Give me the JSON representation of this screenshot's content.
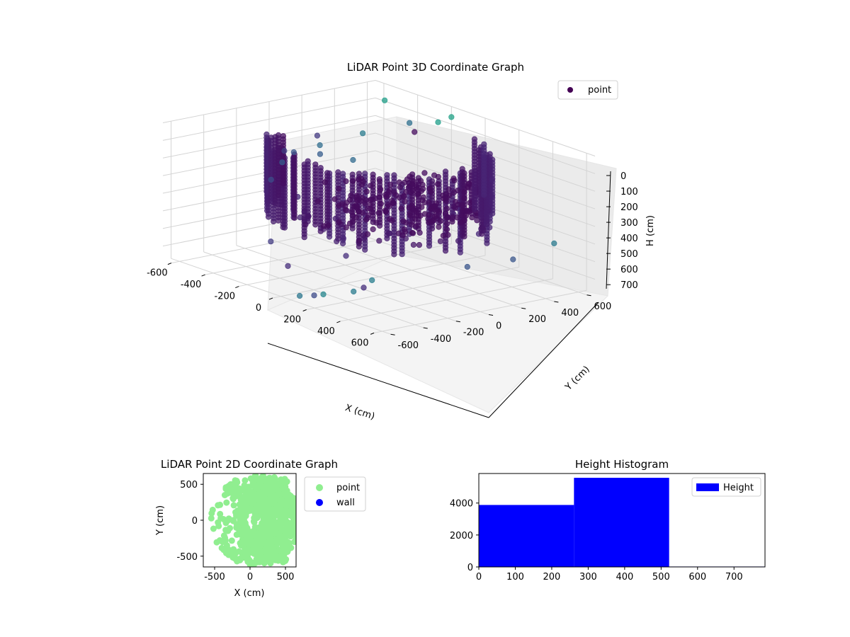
{
  "chart_data": [
    {
      "type": "scatter",
      "title": "LiDAR Point 3D Coordinate Graph",
      "xlabel": "X (cm)",
      "ylabel": "Y (cm)",
      "zlabel": "H (cm)",
      "xlim": [
        -650,
        650
      ],
      "ylim": [
        -650,
        650
      ],
      "zlim": [
        0,
        780
      ],
      "z_inverted": true,
      "xticks": [
        "-600",
        "-400",
        "-200",
        "0",
        "200",
        "400",
        "600"
      ],
      "yticks": [
        "-600",
        "-400",
        "-200",
        "0",
        "200",
        "400",
        "600"
      ],
      "zticks": [
        "0",
        "100",
        "200",
        "300",
        "400",
        "500",
        "600",
        "700"
      ],
      "legend": {
        "placement": "top-right",
        "entries": [
          "point"
        ]
      },
      "grid": true,
      "colormap": "viridis",
      "series": [
        {
          "name": "point",
          "description_values": "ring-shaped point cloud, radius about 450-550 cm, heights 0-520 cm, plus scattered outliers",
          "points": [
            [
              -560,
              420,
              380
            ],
            [
              -600,
              260,
              330
            ],
            [
              -620,
              120,
              300
            ],
            [
              -600,
              -40,
              420
            ],
            [
              -640,
              300,
              300
            ],
            [
              -580,
              500,
              250
            ],
            [
              -520,
              160,
              180
            ],
            [
              -560,
              0,
              250
            ],
            [
              -650,
              80,
              360
            ],
            [
              -400,
              600,
              150
            ],
            [
              -250,
              620,
              100
            ],
            [
              450,
              -620,
              600
            ],
            [
              300,
              -650,
              660
            ],
            [
              150,
              -640,
              720
            ],
            [
              520,
              -580,
              520
            ],
            [
              200,
              -300,
              720
            ],
            [
              -200,
              -350,
              720
            ],
            [
              -350,
              -300,
              640
            ],
            [
              100,
              -500,
              760
            ],
            [
              -50,
              -150,
              650
            ],
            [
              600,
              200,
              520
            ],
            [
              620,
              -100,
              500
            ],
            [
              -450,
              500,
              20
            ],
            [
              -200,
              650,
              60
            ],
            [
              650,
              400,
              450
            ],
            [
              -80,
              300,
              40
            ]
          ]
        }
      ]
    },
    {
      "type": "scatter",
      "title": "LiDAR Point 2D Coordinate Graph",
      "xlabel": "X (cm)",
      "ylabel": "Y (cm)",
      "xlim": [
        -660,
        650
      ],
      "ylim": [
        -650,
        650
      ],
      "xticks": [
        "-500",
        "0",
        "500"
      ],
      "yticks": [
        "-500",
        "0",
        "500"
      ],
      "legend": {
        "placement": "outside-right",
        "entries": [
          "point",
          "wall"
        ]
      },
      "grid": false,
      "series": [
        {
          "name": "point",
          "color": "#90ee90",
          "description_values": "dense ring / disk of points, x from -660 to 560, y from -650 to 650"
        },
        {
          "name": "wall",
          "color": "#0000ff",
          "points": []
        }
      ]
    },
    {
      "type": "bar",
      "title": "Height Histogram",
      "xlabel": "",
      "ylabel": "",
      "xlim": [
        0,
        785
      ],
      "ylim": [
        0,
        5850
      ],
      "xticks": [
        "0",
        "100",
        "200",
        "300",
        "400",
        "500",
        "600",
        "700"
      ],
      "yticks": [
        "0",
        "2000",
        "4000"
      ],
      "legend": {
        "placement": "top-right",
        "entries": [
          "Height"
        ]
      },
      "grid": false,
      "series": [
        {
          "name": "Height",
          "color": "#0000ff",
          "bins": [
            [
              0,
              261,
              3880
            ],
            [
              261,
              522,
              5580
            ],
            [
              522,
              785,
              25
            ]
          ]
        }
      ]
    }
  ]
}
